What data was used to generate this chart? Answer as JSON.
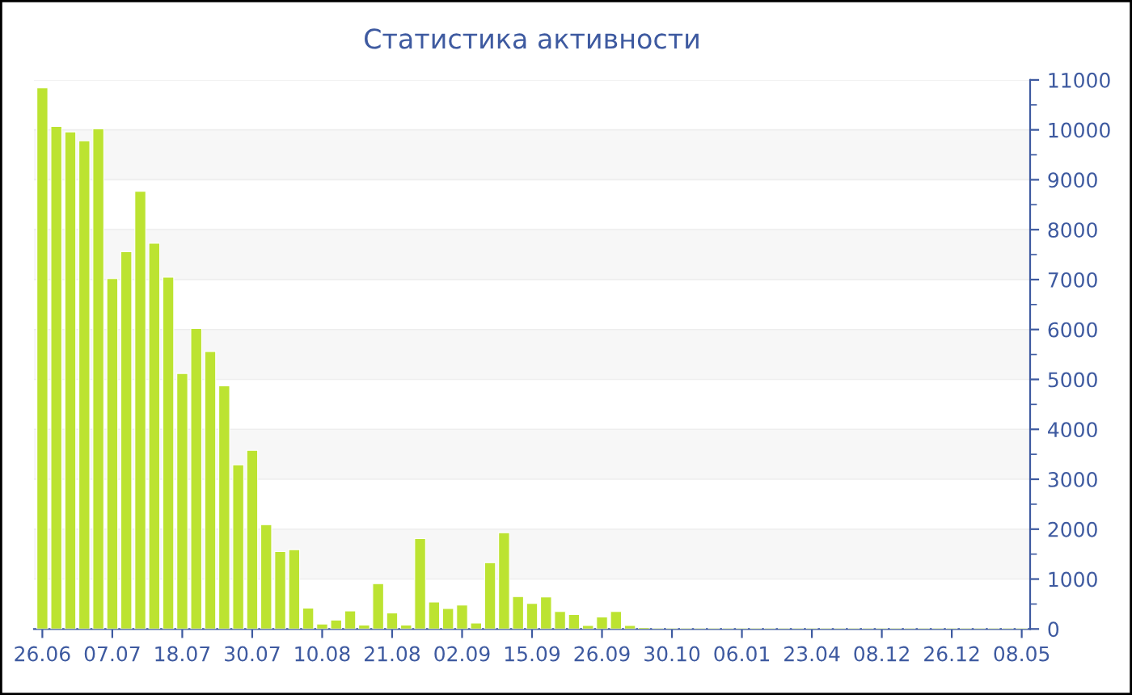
{
  "chart_data": {
    "type": "bar",
    "title": "Статистика активности",
    "categories": [
      "26.06",
      null,
      null,
      null,
      null,
      "07.07",
      null,
      null,
      null,
      null,
      "18.07",
      null,
      null,
      null,
      null,
      "30.07",
      null,
      null,
      null,
      null,
      "10.08",
      null,
      null,
      null,
      null,
      "21.08",
      null,
      null,
      null,
      null,
      "02.09",
      null,
      null,
      null,
      null,
      "15.09",
      null,
      null,
      null,
      null,
      "26.09",
      null,
      null,
      null,
      null,
      "30.10",
      null,
      null,
      null,
      null,
      "06.01",
      null,
      null,
      null,
      null,
      "23.04",
      null,
      null,
      null,
      null,
      "08.12",
      null,
      null,
      null,
      null,
      "26.12",
      null,
      null,
      null,
      null,
      "08.05"
    ],
    "values": [
      10840,
      10070,
      9960,
      9780,
      10020,
      7020,
      7560,
      8770,
      7730,
      7050,
      5120,
      6020,
      5560,
      4870,
      3290,
      3580,
      2090,
      1550,
      1590,
      420,
      100,
      180,
      360,
      80,
      910,
      320,
      80,
      1810,
      540,
      410,
      480,
      120,
      1330,
      1930,
      650,
      510,
      640,
      350,
      290,
      70,
      240,
      350,
      70,
      30,
      20,
      20,
      20,
      20,
      20,
      20,
      20,
      20,
      20,
      20,
      20,
      20,
      20,
      20,
      20,
      20,
      20,
      20,
      20,
      20,
      20,
      20,
      20,
      20,
      20,
      20,
      20
    ],
    "color": "#bce331",
    "ylim": [
      0,
      11000
    ],
    "yticks": [
      0,
      1000,
      2000,
      3000,
      4000,
      5000,
      6000,
      7000,
      8000,
      9000,
      10000,
      11000
    ],
    "grid": "y",
    "legend": false
  }
}
